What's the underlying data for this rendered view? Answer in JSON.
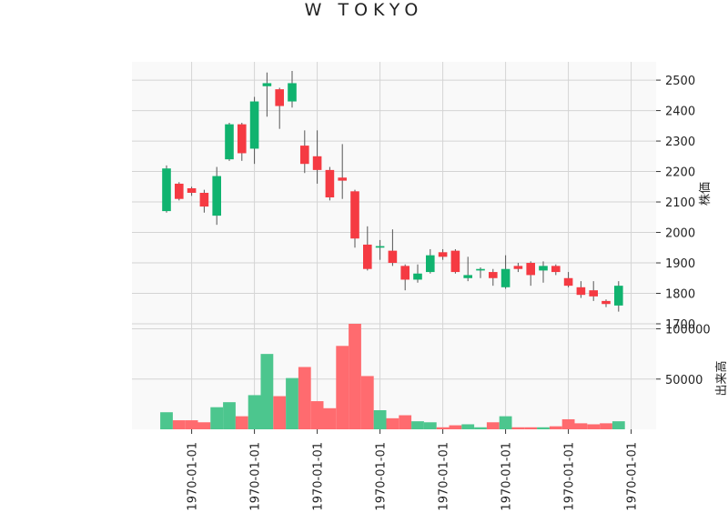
{
  "chart_data": {
    "type": "candlestick",
    "title": "W TOKYO",
    "price_panel": {
      "ylabel": "株価",
      "ylim": [
        1700,
        2560
      ],
      "yticks": [
        1700,
        1800,
        1900,
        2000,
        2100,
        2200,
        2300,
        2400,
        2500
      ]
    },
    "volume_panel": {
      "ylabel": "出来高",
      "ylim": [
        0,
        105000
      ],
      "yticks": [
        50000,
        100000
      ]
    },
    "x_tick_labels": [
      "1970-01-01",
      "1970-01-01",
      "1970-01-01",
      "1970-01-01",
      "1970-01-01",
      "1970-01-01",
      "1970-01-01",
      "1970-01-01"
    ],
    "x_tick_positions": [
      2,
      7,
      12,
      17,
      22,
      27,
      32,
      37
    ],
    "up_color": "#10b36f",
    "down_color": "#f53a42",
    "volume_up_color": "#4cc68e",
    "volume_down_color": "#ff6b6f",
    "candles": [
      {
        "o": 2070,
        "h": 2220,
        "l": 2065,
        "c": 2210,
        "v": 17000
      },
      {
        "o": 2160,
        "h": 2165,
        "l": 2105,
        "c": 2110,
        "v": 9000
      },
      {
        "o": 2145,
        "h": 2150,
        "l": 2120,
        "c": 2130,
        "v": 9000
      },
      {
        "o": 2130,
        "h": 2140,
        "l": 2065,
        "c": 2085,
        "v": 7000
      },
      {
        "o": 2055,
        "h": 2215,
        "l": 2025,
        "c": 2185,
        "v": 22000
      },
      {
        "o": 2240,
        "h": 2360,
        "l": 2235,
        "c": 2355,
        "v": 27000
      },
      {
        "o": 2355,
        "h": 2360,
        "l": 2235,
        "c": 2260,
        "v": 13000
      },
      {
        "o": 2275,
        "h": 2445,
        "l": 2225,
        "c": 2430,
        "v": 34000
      },
      {
        "o": 2480,
        "h": 2525,
        "l": 2380,
        "c": 2490,
        "v": 75000
      },
      {
        "o": 2470,
        "h": 2475,
        "l": 2340,
        "c": 2415,
        "v": 33000
      },
      {
        "o": 2430,
        "h": 2530,
        "l": 2410,
        "c": 2490,
        "v": 51000
      },
      {
        "o": 2285,
        "h": 2335,
        "l": 2195,
        "c": 2225,
        "v": 62000
      },
      {
        "o": 2250,
        "h": 2335,
        "l": 2160,
        "c": 2205,
        "v": 28000
      },
      {
        "o": 2205,
        "h": 2215,
        "l": 2105,
        "c": 2115,
        "v": 21000
      },
      {
        "o": 2180,
        "h": 2290,
        "l": 2110,
        "c": 2170,
        "v": 83000
      },
      {
        "o": 2135,
        "h": 2140,
        "l": 1950,
        "c": 1980,
        "v": 105000
      },
      {
        "o": 1960,
        "h": 2020,
        "l": 1875,
        "c": 1880,
        "v": 53000
      },
      {
        "o": 1950,
        "h": 1975,
        "l": 1910,
        "c": 1955,
        "v": 19000
      },
      {
        "o": 1940,
        "h": 2010,
        "l": 1890,
        "c": 1900,
        "v": 11000
      },
      {
        "o": 1890,
        "h": 1895,
        "l": 1810,
        "c": 1845,
        "v": 14000
      },
      {
        "o": 1845,
        "h": 1895,
        "l": 1835,
        "c": 1865,
        "v": 8000
      },
      {
        "o": 1870,
        "h": 1945,
        "l": 1865,
        "c": 1925,
        "v": 7000
      },
      {
        "o": 1935,
        "h": 1945,
        "l": 1910,
        "c": 1920,
        "v": 2000
      },
      {
        "o": 1940,
        "h": 1945,
        "l": 1865,
        "c": 1870,
        "v": 4000
      },
      {
        "o": 1850,
        "h": 1920,
        "l": 1840,
        "c": 1860,
        "v": 5000
      },
      {
        "o": 1875,
        "h": 1885,
        "l": 1850,
        "c": 1880,
        "v": 2000
      },
      {
        "o": 1870,
        "h": 1880,
        "l": 1825,
        "c": 1850,
        "v": 7000
      },
      {
        "o": 1820,
        "h": 1925,
        "l": 1815,
        "c": 1880,
        "v": 13000
      },
      {
        "o": 1890,
        "h": 1900,
        "l": 1870,
        "c": 1880,
        "v": 2000
      },
      {
        "o": 1900,
        "h": 1905,
        "l": 1825,
        "c": 1860,
        "v": 2000
      },
      {
        "o": 1875,
        "h": 1905,
        "l": 1835,
        "c": 1890,
        "v": 2000
      },
      {
        "o": 1890,
        "h": 1895,
        "l": 1860,
        "c": 1870,
        "v": 3000
      },
      {
        "o": 1850,
        "h": 1870,
        "l": 1820,
        "c": 1825,
        "v": 10000
      },
      {
        "o": 1820,
        "h": 1840,
        "l": 1785,
        "c": 1795,
        "v": 6000
      },
      {
        "o": 1810,
        "h": 1840,
        "l": 1775,
        "c": 1790,
        "v": 5000
      },
      {
        "o": 1775,
        "h": 1780,
        "l": 1755,
        "c": 1765,
        "v": 6000
      },
      {
        "o": 1760,
        "h": 1840,
        "l": 1740,
        "c": 1825,
        "v": 8000
      }
    ]
  }
}
